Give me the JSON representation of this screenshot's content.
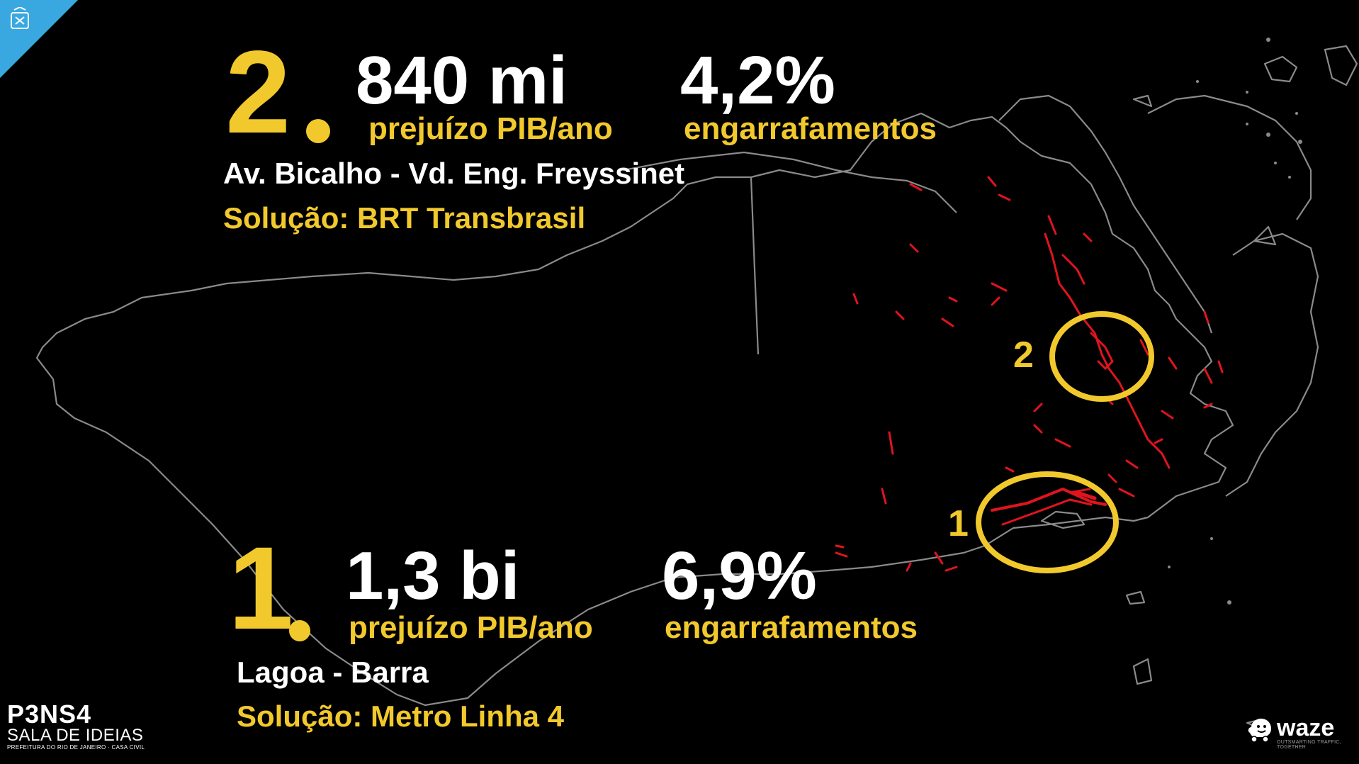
{
  "item2": {
    "rank": "2",
    "loss_value": "840 mi",
    "loss_label": "prejuízo PIB/ano",
    "jam_value": "4,2%",
    "jam_label": "engarrafamentos",
    "location": "Av. Bicalho - Vd. Eng. Freyssinet",
    "solution": "Solução: BRT Transbrasil"
  },
  "item1": {
    "rank": "1",
    "loss_value": "1,3 bi",
    "loss_label": "prejuízo PIB/ano",
    "jam_value": "6,9%",
    "jam_label": "engarrafamentos",
    "location": "Lagoa - Barra",
    "solution": "Solução: Metro Linha 4"
  },
  "map_markers": [
    "2",
    "1"
  ],
  "branding": {
    "logo_title": "P3NS4",
    "logo_subtitle": "SALA DE IDEIAS",
    "logo_footer": "PREFEITURA DO RIO DE JANEIRO · CASA CIVIL",
    "partner": "waze",
    "partner_tagline": "OUTSMARTING TRAFFIC, TOGETHER"
  },
  "colors": {
    "background": "#000000",
    "accent": "#f2c92c",
    "text": "#ffffff",
    "traffic": "#e0141e",
    "outline": "#8a8a8a",
    "corner": "#3aa8e0"
  },
  "icons": [
    "city-crest-icon",
    "waze-icon"
  ]
}
